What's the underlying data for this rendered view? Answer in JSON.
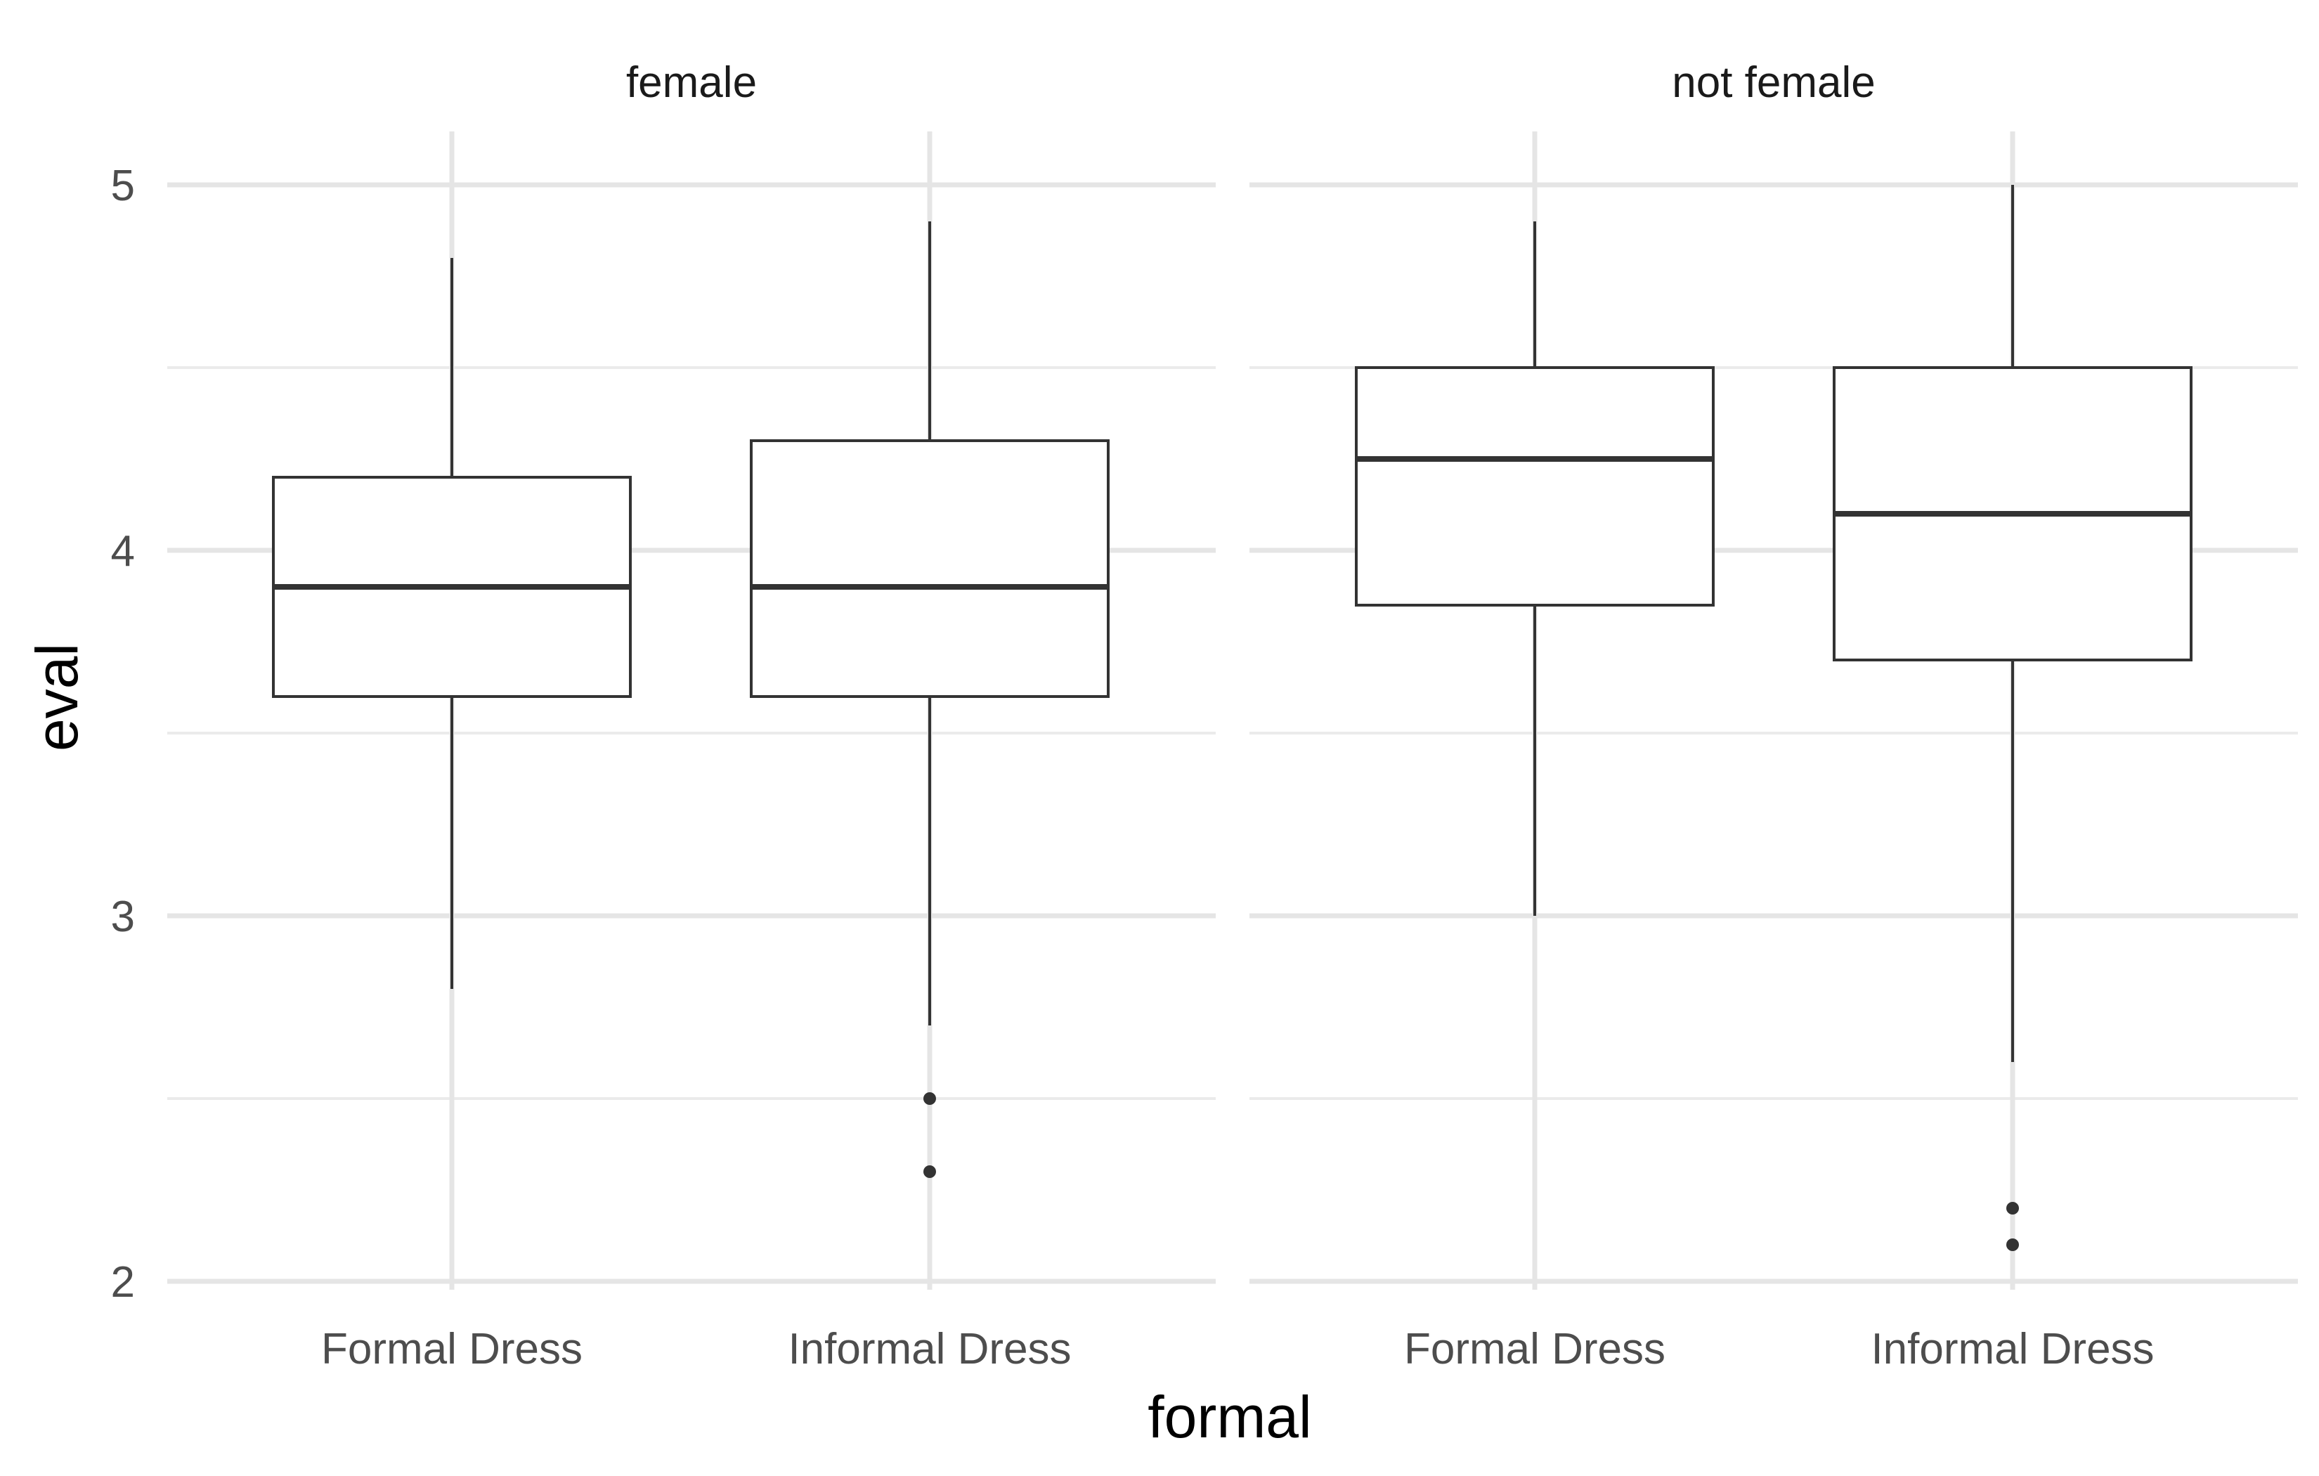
{
  "chart_data": {
    "type": "boxplot",
    "title": "",
    "xlabel": "formal",
    "ylabel": "eval",
    "ylim": [
      1.95,
      5.15
    ],
    "y_ticks": [
      "2",
      "3",
      "4",
      "5"
    ],
    "y_tick_values": [
      2,
      3,
      4,
      5
    ],
    "categories": [
      "Formal Dress",
      "Informal Dress"
    ],
    "grid": true,
    "facets": [
      {
        "label": "female",
        "boxes": [
          {
            "category": "Formal Dress",
            "lower_whisker": 2.8,
            "q1": 3.6,
            "median": 3.9,
            "q3": 4.2,
            "upper_whisker": 4.8,
            "outliers": []
          },
          {
            "category": "Informal Dress",
            "lower_whisker": 2.7,
            "q1": 3.6,
            "median": 3.9,
            "q3": 4.3,
            "upper_whisker": 4.9,
            "outliers": [
              2.5,
              2.3
            ]
          }
        ]
      },
      {
        "label": "not female",
        "boxes": [
          {
            "category": "Formal Dress",
            "lower_whisker": 3.0,
            "q1": 3.85,
            "median": 4.25,
            "q3": 4.5,
            "upper_whisker": 4.9,
            "outliers": []
          },
          {
            "category": "Informal Dress",
            "lower_whisker": 2.6,
            "q1": 3.7,
            "median": 4.1,
            "q3": 4.5,
            "upper_whisker": 5.0,
            "outliers": [
              2.2,
              2.1
            ]
          }
        ]
      }
    ],
    "colors": {
      "box_outline": "#333333",
      "box_fill": "#ffffff",
      "grid_major": "#e5e5e5",
      "grid_minor": "#ebebeb"
    }
  }
}
